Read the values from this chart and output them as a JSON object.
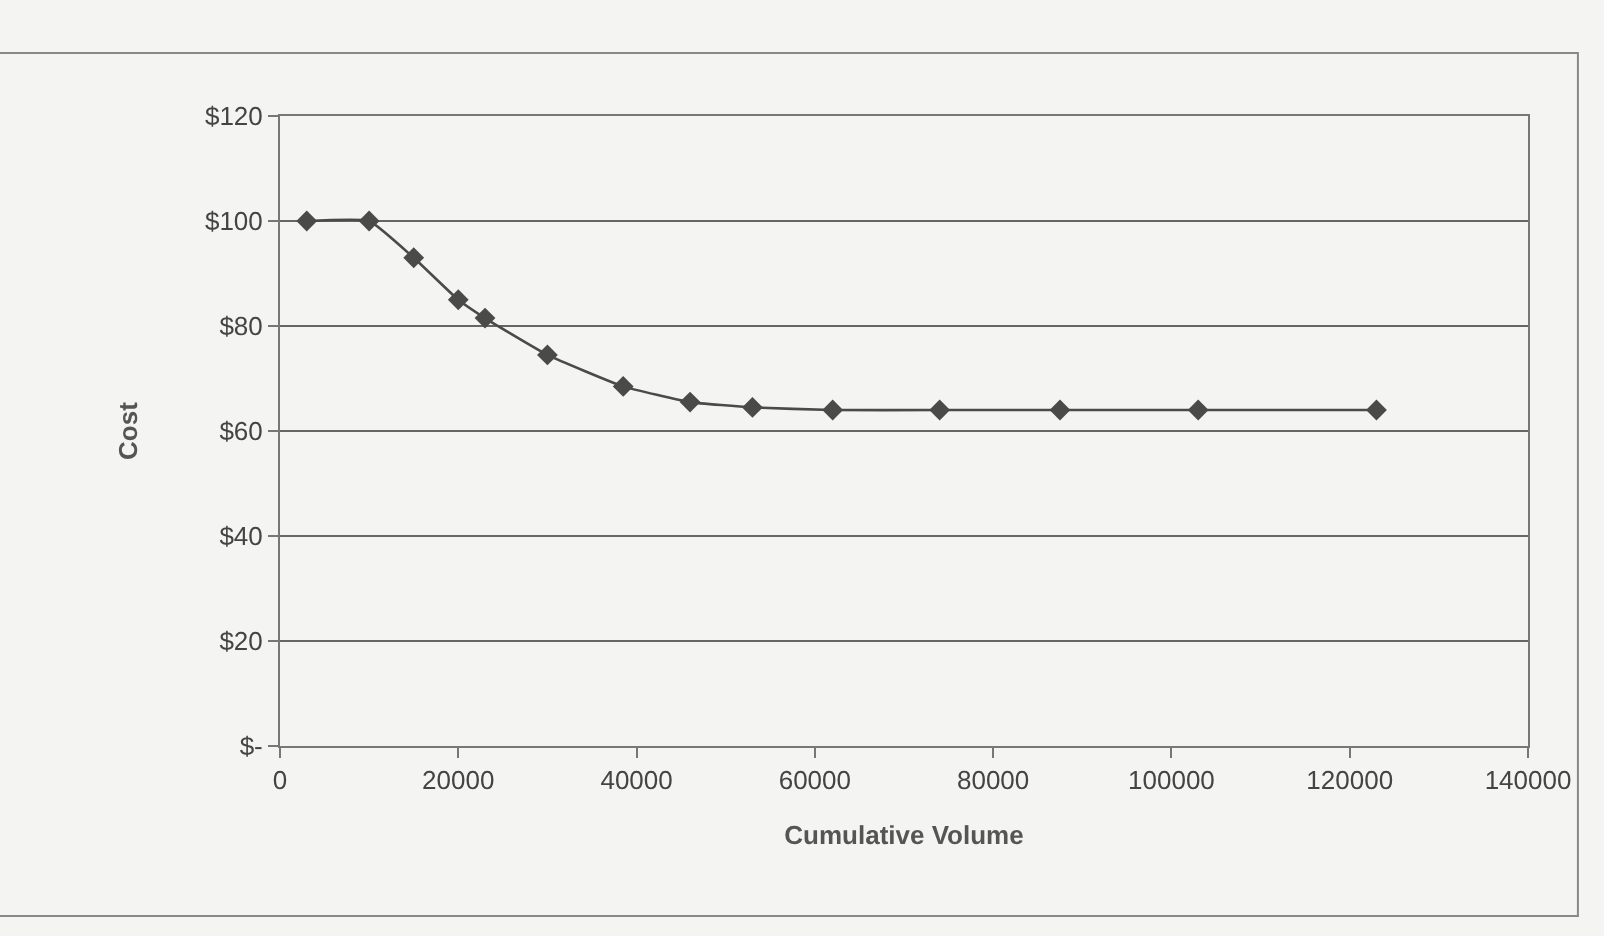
{
  "chart_data": {
    "type": "line",
    "xlabel": "Cumulative Volume",
    "ylabel": "Cost",
    "x": [
      3000,
      10000,
      15000,
      20000,
      23000,
      30000,
      38500,
      46000,
      53000,
      62000,
      74000,
      87500,
      103000,
      123000
    ],
    "series": [
      {
        "color": "#4a4a4a",
        "values": [
          100,
          100,
          93,
          85,
          81.5,
          74.5,
          68.5,
          65.5,
          64.5,
          64,
          64,
          64,
          64,
          64
        ]
      }
    ],
    "xlim": [
      0,
      140000
    ],
    "xticks": [
      0,
      20000,
      40000,
      60000,
      80000,
      100000,
      120000,
      140000
    ],
    "ylim": [
      0,
      120
    ],
    "yticks": [
      {
        "value": 0,
        "label": "$-"
      },
      {
        "value": 20,
        "label": "$20"
      },
      {
        "value": 40,
        "label": "$40"
      },
      {
        "value": 60,
        "label": "$60"
      },
      {
        "value": 80,
        "label": "$80"
      },
      {
        "value": 100,
        "label": "$100"
      },
      {
        "value": 120,
        "label": "$120"
      }
    ],
    "grid": "y",
    "marker": "diamond",
    "line_style": "solid"
  }
}
